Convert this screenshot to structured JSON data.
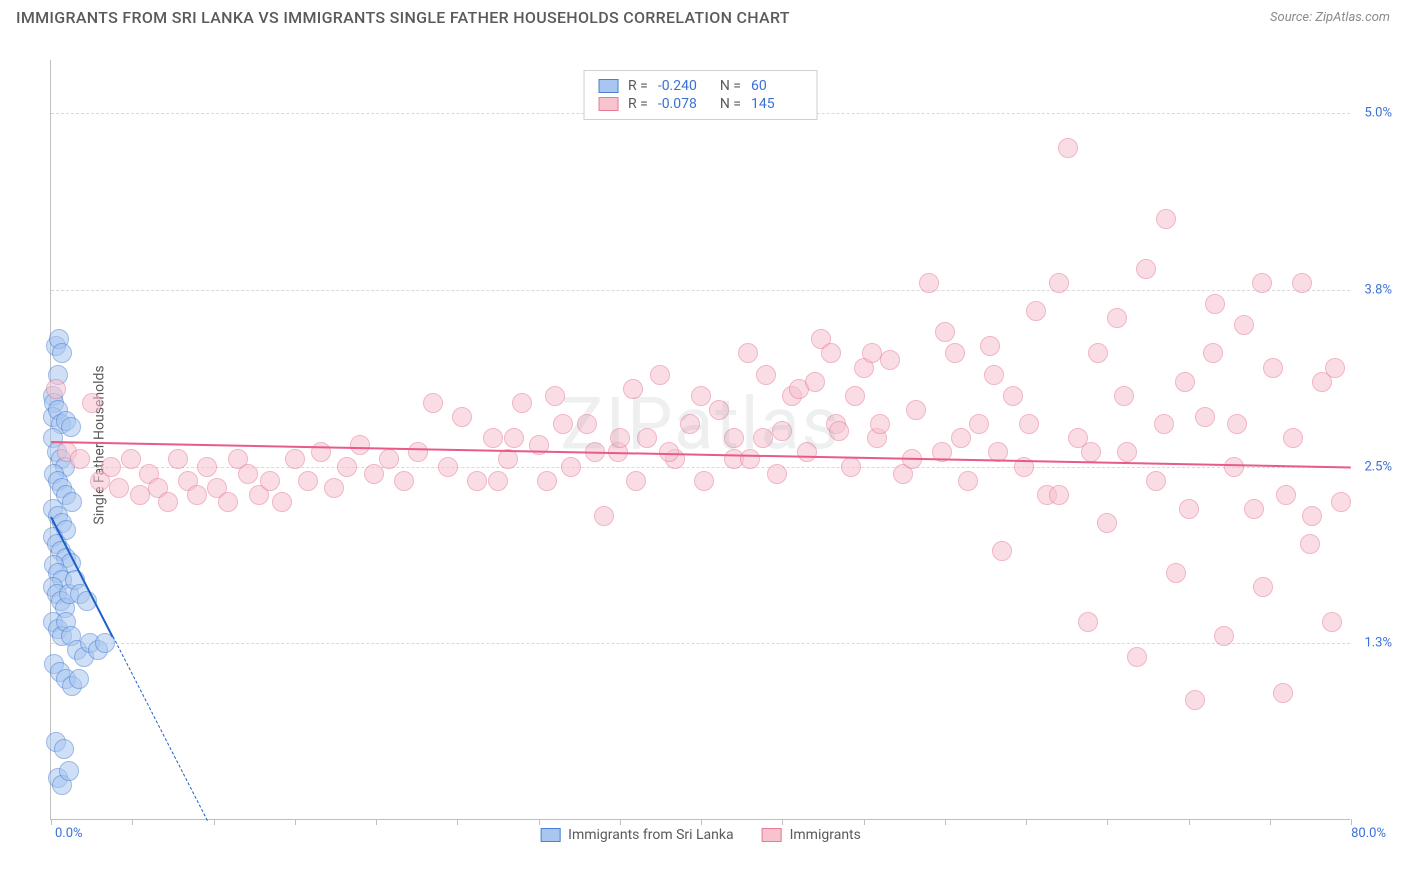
{
  "header": {
    "title": "IMMIGRANTS FROM SRI LANKA VS IMMIGRANTS SINGLE FATHER HOUSEHOLDS CORRELATION CHART",
    "source": "Source: ZipAtlas.com"
  },
  "watermark": "ZIPatlas",
  "chart": {
    "type": "scatter",
    "y_axis_label": "Single Father Households",
    "xlim": [
      0,
      80
    ],
    "ylim": [
      0,
      5.375
    ],
    "x_ticks_minor": [
      0,
      5,
      10,
      15,
      20,
      25,
      30,
      35,
      40,
      45,
      50,
      55,
      60,
      65,
      70,
      75,
      80
    ],
    "x_tick_left": "0.0%",
    "x_tick_right": "80.0%",
    "y_ticks": [
      {
        "v": 1.25,
        "label": "1.3%"
      },
      {
        "v": 2.5,
        "label": "2.5%"
      },
      {
        "v": 3.75,
        "label": "3.8%"
      },
      {
        "v": 5.0,
        "label": "5.0%"
      }
    ],
    "background_color": "#ffffff",
    "grid_color": "#d9d9d9",
    "axis_color": "#bfbfbf",
    "marker_radius": 10,
    "marker_opacity": 0.55,
    "series": [
      {
        "id": "sri_lanka",
        "label": "Immigrants from Sri Lanka",
        "fill": "#a8c6ef",
        "stroke": "#4a7fd6",
        "line_color": "#1f5fc7",
        "R": "-0.240",
        "N": "60",
        "trend": {
          "x1": 0,
          "y1": 2.15,
          "x2": 3.8,
          "y2": 1.3
        },
        "trend_dash": {
          "x1": 3.8,
          "y1": 1.3,
          "x2": 9.6,
          "y2": 0.0
        },
        "points": [
          [
            0.1,
            3.0
          ],
          [
            0.3,
            3.35
          ],
          [
            0.5,
            3.4
          ],
          [
            0.7,
            3.3
          ],
          [
            0.4,
            3.15
          ],
          [
            0.2,
            2.95
          ],
          [
            0.15,
            2.85
          ],
          [
            0.4,
            2.9
          ],
          [
            0.6,
            2.8
          ],
          [
            0.9,
            2.82
          ],
          [
            1.2,
            2.78
          ],
          [
            0.1,
            2.7
          ],
          [
            0.35,
            2.6
          ],
          [
            0.6,
            2.55
          ],
          [
            0.85,
            2.5
          ],
          [
            0.2,
            2.45
          ],
          [
            0.45,
            2.4
          ],
          [
            0.7,
            2.35
          ],
          [
            0.95,
            2.3
          ],
          [
            1.3,
            2.25
          ],
          [
            0.15,
            2.2
          ],
          [
            0.4,
            2.15
          ],
          [
            0.65,
            2.1
          ],
          [
            0.95,
            2.05
          ],
          [
            0.1,
            2.0
          ],
          [
            0.35,
            1.95
          ],
          [
            0.6,
            1.9
          ],
          [
            0.9,
            1.85
          ],
          [
            1.2,
            1.82
          ],
          [
            0.2,
            1.8
          ],
          [
            0.45,
            1.75
          ],
          [
            0.7,
            1.7
          ],
          [
            0.1,
            1.65
          ],
          [
            0.35,
            1.6
          ],
          [
            0.6,
            1.55
          ],
          [
            0.85,
            1.5
          ],
          [
            1.1,
            1.6
          ],
          [
            1.5,
            1.7
          ],
          [
            1.8,
            1.6
          ],
          [
            2.2,
            1.55
          ],
          [
            0.15,
            1.4
          ],
          [
            0.4,
            1.35
          ],
          [
            0.65,
            1.3
          ],
          [
            0.9,
            1.4
          ],
          [
            1.25,
            1.3
          ],
          [
            1.6,
            1.2
          ],
          [
            2.0,
            1.15
          ],
          [
            2.4,
            1.25
          ],
          [
            2.9,
            1.2
          ],
          [
            3.3,
            1.25
          ],
          [
            0.2,
            1.1
          ],
          [
            0.55,
            1.05
          ],
          [
            0.9,
            1.0
          ],
          [
            1.3,
            0.95
          ],
          [
            1.7,
            1.0
          ],
          [
            0.3,
            0.55
          ],
          [
            0.8,
            0.5
          ],
          [
            0.4,
            0.3
          ],
          [
            0.7,
            0.25
          ],
          [
            1.1,
            0.35
          ]
        ]
      },
      {
        "id": "immigrants",
        "label": "Immigrants",
        "fill": "#f6c3cf",
        "stroke": "#e77a94",
        "line_color": "#e85a88",
        "R": "-0.078",
        "N": "145",
        "trend": {
          "x1": 0,
          "y1": 2.68,
          "x2": 80,
          "y2": 2.5
        },
        "points": [
          [
            0.3,
            3.05
          ],
          [
            1.0,
            2.6
          ],
          [
            1.8,
            2.55
          ],
          [
            2.5,
            2.95
          ],
          [
            3.0,
            2.4
          ],
          [
            3.7,
            2.5
          ],
          [
            4.2,
            2.35
          ],
          [
            4.9,
            2.55
          ],
          [
            5.5,
            2.3
          ],
          [
            6.0,
            2.45
          ],
          [
            6.6,
            2.35
          ],
          [
            7.2,
            2.25
          ],
          [
            7.8,
            2.55
          ],
          [
            8.4,
            2.4
          ],
          [
            9.0,
            2.3
          ],
          [
            9.6,
            2.5
          ],
          [
            10.2,
            2.35
          ],
          [
            10.9,
            2.25
          ],
          [
            11.5,
            2.55
          ],
          [
            12.1,
            2.45
          ],
          [
            12.8,
            2.3
          ],
          [
            13.5,
            2.4
          ],
          [
            14.2,
            2.25
          ],
          [
            15.0,
            2.55
          ],
          [
            15.8,
            2.4
          ],
          [
            16.6,
            2.6
          ],
          [
            17.4,
            2.35
          ],
          [
            18.2,
            2.5
          ],
          [
            19.0,
            2.65
          ],
          [
            19.9,
            2.45
          ],
          [
            20.8,
            2.55
          ],
          [
            21.7,
            2.4
          ],
          [
            22.6,
            2.6
          ],
          [
            23.5,
            2.95
          ],
          [
            24.4,
            2.5
          ],
          [
            25.3,
            2.85
          ],
          [
            26.2,
            2.4
          ],
          [
            27.2,
            2.7
          ],
          [
            28.1,
            2.55
          ],
          [
            29.0,
            2.95
          ],
          [
            30.0,
            2.65
          ],
          [
            31.0,
            3.0
          ],
          [
            32.0,
            2.5
          ],
          [
            33.0,
            2.8
          ],
          [
            34.0,
            2.15
          ],
          [
            34.9,
            2.6
          ],
          [
            35.8,
            3.05
          ],
          [
            36.7,
            2.7
          ],
          [
            37.5,
            3.15
          ],
          [
            38.4,
            2.55
          ],
          [
            39.3,
            2.8
          ],
          [
            40.2,
            2.4
          ],
          [
            41.1,
            2.9
          ],
          [
            42.0,
            2.55
          ],
          [
            42.9,
            3.3
          ],
          [
            43.8,
            2.7
          ],
          [
            44.7,
            2.45
          ],
          [
            45.6,
            3.0
          ],
          [
            46.5,
            2.6
          ],
          [
            47.4,
            3.4
          ],
          [
            48.3,
            2.8
          ],
          [
            49.2,
            2.5
          ],
          [
            50.0,
            3.2
          ],
          [
            50.8,
            2.7
          ],
          [
            51.6,
            3.25
          ],
          [
            52.4,
            2.45
          ],
          [
            53.2,
            2.9
          ],
          [
            54.0,
            3.8
          ],
          [
            54.8,
            2.6
          ],
          [
            55.6,
            3.3
          ],
          [
            56.4,
            2.4
          ],
          [
            57.1,
            2.8
          ],
          [
            57.8,
            3.35
          ],
          [
            58.5,
            1.9
          ],
          [
            59.2,
            3.0
          ],
          [
            59.9,
            2.5
          ],
          [
            60.6,
            3.6
          ],
          [
            61.3,
            2.3
          ],
          [
            62.0,
            3.8
          ],
          [
            62.6,
            4.75
          ],
          [
            63.2,
            2.7
          ],
          [
            63.8,
            1.4
          ],
          [
            64.4,
            3.3
          ],
          [
            65.0,
            2.1
          ],
          [
            65.6,
            3.55
          ],
          [
            66.2,
            2.6
          ],
          [
            66.8,
            1.15
          ],
          [
            67.4,
            3.9
          ],
          [
            68.0,
            2.4
          ],
          [
            68.6,
            4.25
          ],
          [
            69.2,
            1.75
          ],
          [
            69.8,
            3.1
          ],
          [
            70.4,
            0.85
          ],
          [
            71.0,
            2.85
          ],
          [
            71.6,
            3.65
          ],
          [
            72.2,
            1.3
          ],
          [
            72.8,
            2.5
          ],
          [
            73.4,
            3.5
          ],
          [
            74.0,
            2.2
          ],
          [
            74.6,
            1.65
          ],
          [
            75.2,
            3.2
          ],
          [
            75.8,
            0.9
          ],
          [
            76.4,
            2.7
          ],
          [
            77.0,
            3.8
          ],
          [
            77.6,
            2.15
          ],
          [
            78.2,
            3.1
          ],
          [
            78.8,
            1.4
          ],
          [
            79.4,
            2.25
          ],
          [
            55.0,
            3.45
          ],
          [
            48.0,
            3.3
          ],
          [
            50.5,
            3.3
          ],
          [
            46.0,
            3.05
          ],
          [
            40.0,
            3.0
          ],
          [
            38.0,
            2.6
          ],
          [
            42.0,
            2.7
          ],
          [
            45.0,
            2.75
          ],
          [
            44.0,
            3.15
          ],
          [
            48.5,
            2.75
          ],
          [
            51.0,
            2.8
          ],
          [
            53.0,
            2.55
          ],
          [
            56.0,
            2.7
          ],
          [
            58.3,
            2.6
          ],
          [
            60.2,
            2.8
          ],
          [
            62.0,
            2.3
          ],
          [
            64.0,
            2.6
          ],
          [
            66.0,
            3.0
          ],
          [
            68.5,
            2.8
          ],
          [
            70.0,
            2.2
          ],
          [
            71.5,
            3.3
          ],
          [
            73.0,
            2.8
          ],
          [
            74.5,
            3.8
          ],
          [
            76.0,
            2.3
          ],
          [
            77.5,
            1.95
          ],
          [
            79.0,
            3.2
          ],
          [
            58.0,
            3.15
          ],
          [
            30.5,
            2.4
          ],
          [
            33.5,
            2.6
          ],
          [
            36.0,
            2.4
          ],
          [
            27.5,
            2.4
          ],
          [
            28.5,
            2.7
          ],
          [
            31.5,
            2.8
          ],
          [
            35.0,
            2.7
          ],
          [
            43.0,
            2.55
          ],
          [
            47.0,
            3.1
          ],
          [
            49.5,
            3.0
          ]
        ]
      }
    ]
  },
  "legend_top_labels": {
    "R": "R =",
    "N": "N ="
  }
}
